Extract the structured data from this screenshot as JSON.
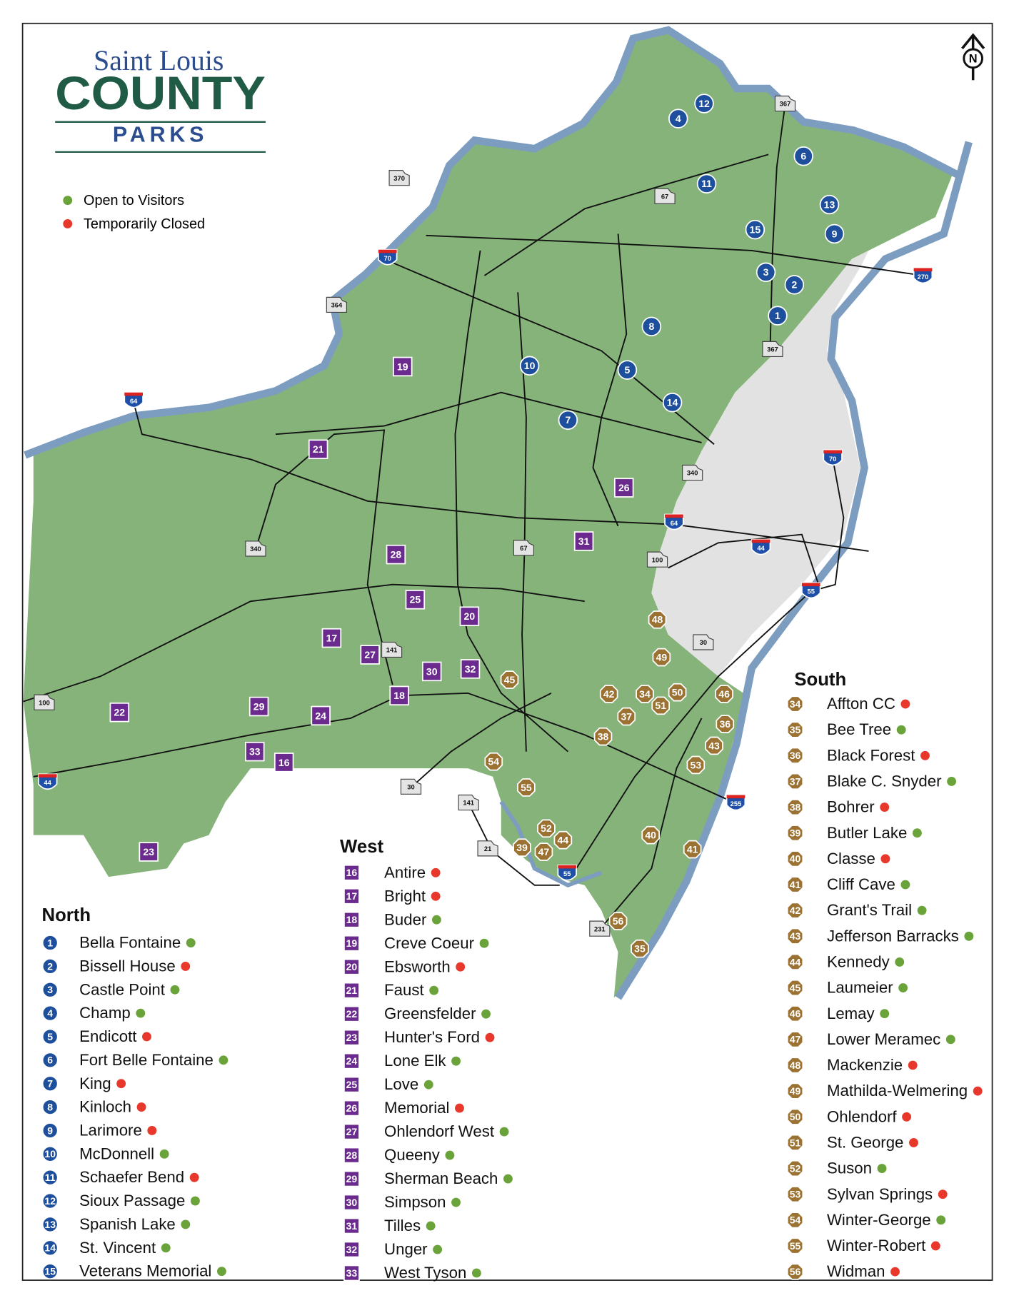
{
  "header": {
    "line1": "Saint Louis",
    "line2": "COUNTY",
    "line3": "PARKS"
  },
  "north_arrow": "N",
  "status_colors": {
    "open": "#6aa33a",
    "closed": "#e8372b"
  },
  "legend": [
    {
      "label": "Open to Visitors",
      "status": "open"
    },
    {
      "label": "Temporarily Closed",
      "status": "closed"
    }
  ],
  "regions": [
    {
      "title": "North",
      "marker": "circle",
      "color": "#1d4f9c",
      "parks": [
        {
          "number": "1",
          "name": "Bella Fontaine",
          "status": "open"
        },
        {
          "number": "2",
          "name": "Bissell House",
          "status": "closed"
        },
        {
          "number": "3",
          "name": "Castle Point",
          "status": "open"
        },
        {
          "number": "4",
          "name": "Champ",
          "status": "open"
        },
        {
          "number": "5",
          "name": "Endicott",
          "status": "closed"
        },
        {
          "number": "6",
          "name": "Fort Belle Fontaine",
          "status": "open"
        },
        {
          "number": "7",
          "name": "King",
          "status": "closed"
        },
        {
          "number": "8",
          "name": "Kinloch",
          "status": "closed"
        },
        {
          "number": "9",
          "name": "Larimore",
          "status": "closed"
        },
        {
          "number": "10",
          "name": "McDonnell",
          "status": "open"
        },
        {
          "number": "11",
          "name": "Schaefer Bend",
          "status": "closed"
        },
        {
          "number": "12",
          "name": "Sioux Passage",
          "status": "open"
        },
        {
          "number": "13",
          "name": "Spanish Lake",
          "status": "open"
        },
        {
          "number": "14",
          "name": "St. Vincent",
          "status": "open"
        },
        {
          "number": "15",
          "name": "Veterans Memorial",
          "status": "open"
        }
      ]
    },
    {
      "title": "West",
      "marker": "square",
      "color": "#6b2a8e",
      "parks": [
        {
          "number": "16",
          "name": "Antire",
          "status": "closed"
        },
        {
          "number": "17",
          "name": "Bright",
          "status": "closed"
        },
        {
          "number": "18",
          "name": "Buder",
          "status": "open"
        },
        {
          "number": "19",
          "name": "Creve Coeur",
          "status": "open"
        },
        {
          "number": "20",
          "name": "Ebsworth",
          "status": "closed"
        },
        {
          "number": "21",
          "name": "Faust",
          "status": "open"
        },
        {
          "number": "22",
          "name": "Greensfelder",
          "status": "open"
        },
        {
          "number": "23",
          "name": "Hunter's Ford",
          "status": "closed"
        },
        {
          "number": "24",
          "name": "Lone Elk",
          "status": "open"
        },
        {
          "number": "25",
          "name": "Love",
          "status": "open"
        },
        {
          "number": "26",
          "name": "Memorial",
          "status": "closed"
        },
        {
          "number": "27",
          "name": "Ohlendorf West",
          "status": "open"
        },
        {
          "number": "28",
          "name": "Queeny",
          "status": "open"
        },
        {
          "number": "29",
          "name": "Sherman Beach",
          "status": "open"
        },
        {
          "number": "30",
          "name": "Simpson",
          "status": "open"
        },
        {
          "number": "31",
          "name": "Tilles",
          "status": "open"
        },
        {
          "number": "32",
          "name": "Unger",
          "status": "open"
        },
        {
          "number": "33",
          "name": "West Tyson",
          "status": "open"
        }
      ]
    },
    {
      "title": "South",
      "marker": "octagon",
      "color": "#9b7232",
      "parks": [
        {
          "number": "34",
          "name": "Affton CC",
          "status": "closed"
        },
        {
          "number": "35",
          "name": "Bee Tree",
          "status": "open"
        },
        {
          "number": "36",
          "name": "Black Forest",
          "status": "closed"
        },
        {
          "number": "37",
          "name": "Blake C. Snyder",
          "status": "open"
        },
        {
          "number": "38",
          "name": "Bohrer",
          "status": "closed"
        },
        {
          "number": "39",
          "name": "Butler Lake",
          "status": "open"
        },
        {
          "number": "40",
          "name": "Classe",
          "status": "closed"
        },
        {
          "number": "41",
          "name": "Cliff Cave",
          "status": "open"
        },
        {
          "number": "42",
          "name": "Grant's Trail",
          "status": "open"
        },
        {
          "number": "43",
          "name": "Jefferson Barracks",
          "status": "open"
        },
        {
          "number": "44",
          "name": "Kennedy",
          "status": "open"
        },
        {
          "number": "45",
          "name": "Laumeier",
          "status": "open"
        },
        {
          "number": "46",
          "name": "Lemay",
          "status": "open"
        },
        {
          "number": "47",
          "name": "Lower Meramec",
          "status": "open"
        },
        {
          "number": "48",
          "name": "Mackenzie",
          "status": "closed"
        },
        {
          "number": "49",
          "name": "Mathilda-Welmering",
          "status": "closed"
        },
        {
          "number": "50",
          "name": "Ohlendorf",
          "status": "closed"
        },
        {
          "number": "51",
          "name": "St. George",
          "status": "closed"
        },
        {
          "number": "52",
          "name": "Suson",
          "status": "open"
        },
        {
          "number": "53",
          "name": "Sylvan Springs",
          "status": "closed"
        },
        {
          "number": "54",
          "name": "Winter-George",
          "status": "open"
        },
        {
          "number": "55",
          "name": "Winter-Robert",
          "status": "closed"
        },
        {
          "number": "56",
          "name": "Widman",
          "status": "closed"
        }
      ]
    }
  ],
  "highways": [
    {
      "label": "370",
      "kind": "state"
    },
    {
      "label": "70",
      "kind": "interstate"
    },
    {
      "label": "364",
      "kind": "state"
    },
    {
      "label": "64",
      "kind": "interstate"
    },
    {
      "label": "367",
      "kind": "state"
    },
    {
      "label": "67",
      "kind": "state"
    },
    {
      "label": "270",
      "kind": "interstate"
    },
    {
      "label": "367",
      "kind": "state"
    },
    {
      "label": "70",
      "kind": "interstate"
    },
    {
      "label": "340",
      "kind": "state"
    },
    {
      "label": "64",
      "kind": "interstate"
    },
    {
      "label": "340",
      "kind": "state"
    },
    {
      "label": "67",
      "kind": "state"
    },
    {
      "label": "100",
      "kind": "state"
    },
    {
      "label": "44",
      "kind": "interstate"
    },
    {
      "label": "55",
      "kind": "interstate"
    },
    {
      "label": "30",
      "kind": "state"
    },
    {
      "label": "141",
      "kind": "state"
    },
    {
      "label": "100",
      "kind": "state"
    },
    {
      "label": "44",
      "kind": "interstate"
    },
    {
      "label": "30",
      "kind": "state"
    },
    {
      "label": "141",
      "kind": "state"
    },
    {
      "label": "21",
      "kind": "state"
    },
    {
      "label": "55",
      "kind": "interstate"
    },
    {
      "label": "255",
      "kind": "interstate"
    },
    {
      "label": "231",
      "kind": "state"
    }
  ]
}
